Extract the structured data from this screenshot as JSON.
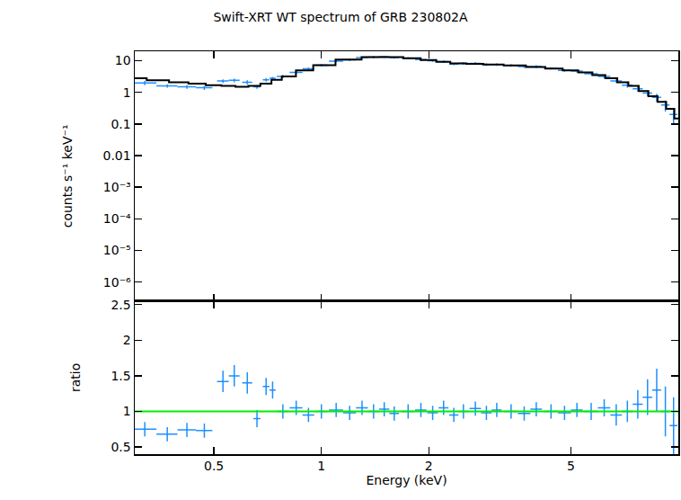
{
  "chart_data": [
    {
      "type": "scatter",
      "title": "Swift-XRT WT spectrum of GRB 230802A",
      "y_label": "counts s⁻¹ keV⁻¹",
      "log": true,
      "tick_labels": "y",
      "xlim": [
        0.3,
        10
      ],
      "ylim": [
        2.5e-07,
        20
      ],
      "xticks": [
        0.5,
        1,
        2,
        5
      ],
      "yticks": [
        {
          "value": 1e-06,
          "label": "10⁻⁶"
        },
        {
          "value": 1e-05,
          "label": "10⁻⁵"
        },
        {
          "value": 0.0001,
          "label": "10⁻⁴"
        },
        {
          "value": 0.001,
          "label": "10⁻³"
        },
        0.01,
        0.1,
        1,
        10
      ],
      "series": [
        {
          "type": "scatter",
          "color": "#1e90ff",
          "marker": "point",
          "x": [
            0.32,
            0.37,
            0.42,
            0.47,
            0.53,
            0.57,
            0.62,
            0.66,
            0.7,
            0.73,
            0.78,
            0.85,
            0.92,
            1.0,
            1.1,
            1.2,
            1.3,
            1.4,
            1.5,
            1.6,
            1.75,
            1.9,
            2.05,
            2.2,
            2.35,
            2.5,
            2.7,
            2.9,
            3.1,
            3.4,
            3.7,
            4.0,
            4.4,
            4.8,
            5.2,
            5.7,
            6.2,
            6.7,
            7.2,
            7.7,
            8.2,
            8.7,
            9.2,
            9.7
          ],
          "x_err": [
            0.025,
            0.025,
            0.025,
            0.025,
            0.02,
            0.02,
            0.02,
            0.015,
            0.015,
            0.015,
            0.03,
            0.035,
            0.035,
            0.04,
            0.05,
            0.05,
            0.05,
            0.05,
            0.05,
            0.05,
            0.07,
            0.07,
            0.07,
            0.07,
            0.07,
            0.08,
            0.1,
            0.1,
            0.1,
            0.15,
            0.15,
            0.15,
            0.2,
            0.2,
            0.2,
            0.25,
            0.25,
            0.25,
            0.25,
            0.25,
            0.25,
            0.25,
            0.25,
            0.25
          ],
          "values": [
            2.0,
            1.6,
            1.5,
            1.4,
            2.3,
            2.4,
            2.1,
            1.5,
            2.5,
            2.8,
            3.2,
            4.3,
            5.6,
            7.3,
            9.7,
            10.8,
            12.6,
            13.0,
            13.4,
            12.6,
            12.0,
            11.0,
            10.0,
            9.4,
            7.9,
            8.2,
            8.2,
            7.6,
            7.6,
            7.1,
            6.6,
            6.6,
            5.8,
            5.0,
            4.7,
            3.9,
            3.2,
            2.3,
            1.7,
            1.3,
            0.95,
            0.7,
            0.4,
            0.2
          ],
          "y_err": [
            0.3,
            0.2,
            0.2,
            0.2,
            0.3,
            0.3,
            0.3,
            0.2,
            0.3,
            0.3,
            0.4,
            0.4,
            0.5,
            0.6,
            0.8,
            0.9,
            1.0,
            1.0,
            1.0,
            1.0,
            0.9,
            0.9,
            0.8,
            0.8,
            0.7,
            0.7,
            0.7,
            0.7,
            0.7,
            0.6,
            0.6,
            0.6,
            0.5,
            0.5,
            0.5,
            0.4,
            0.4,
            0.3,
            0.3,
            0.25,
            0.2,
            0.2,
            0.15,
            0.1
          ]
        },
        {
          "type": "line",
          "color": "#000000",
          "line_style": "step",
          "x": [
            0.3,
            0.35,
            0.4,
            0.45,
            0.5,
            0.55,
            0.6,
            0.65,
            0.7,
            0.75,
            0.8,
            0.9,
            1.0,
            1.2,
            1.4,
            1.6,
            1.8,
            2.0,
            2.2,
            2.4,
            2.7,
            3.0,
            3.5,
            4.0,
            4.5,
            5.0,
            5.5,
            6.0,
            6.5,
            7.0,
            7.5,
            8.0,
            8.5,
            9.0,
            9.5,
            10
          ],
          "values": [
            2.8,
            2.4,
            2.1,
            1.9,
            1.7,
            1.6,
            1.5,
            1.6,
            1.9,
            2.5,
            3.2,
            5.0,
            7.3,
            11,
            13,
            13,
            12,
            10.5,
            9.2,
            8.3,
            8.0,
            7.6,
            7.1,
            6.4,
            5.7,
            5.0,
            4.3,
            3.5,
            2.8,
            2.1,
            1.6,
            1.1,
            0.75,
            0.5,
            0.3,
            0.15
          ]
        }
      ]
    },
    {
      "type": "scatter",
      "x_label": "Energy (keV)",
      "y_label": "ratio",
      "log": "x",
      "xlim": [
        0.3,
        10
      ],
      "ylim": [
        0.4,
        2.55
      ],
      "xticks": [
        0.5,
        1,
        2,
        5
      ],
      "yticks": [
        0.5,
        1,
        1.5,
        2,
        2.5
      ],
      "series": [
        {
          "type": "scatter",
          "color": "#1e90ff",
          "marker": "point",
          "x": [
            0.32,
            0.37,
            0.42,
            0.47,
            0.53,
            0.57,
            0.62,
            0.66,
            0.7,
            0.73,
            0.78,
            0.85,
            0.92,
            1.0,
            1.1,
            1.2,
            1.3,
            1.4,
            1.5,
            1.6,
            1.75,
            1.9,
            2.05,
            2.2,
            2.35,
            2.5,
            2.7,
            2.9,
            3.1,
            3.4,
            3.7,
            4.0,
            4.4,
            4.8,
            5.2,
            5.7,
            6.2,
            6.7,
            7.2,
            7.7,
            8.2,
            8.7,
            9.2,
            9.7
          ],
          "x_err": [
            0.025,
            0.025,
            0.025,
            0.025,
            0.02,
            0.02,
            0.02,
            0.015,
            0.015,
            0.015,
            0.03,
            0.035,
            0.035,
            0.04,
            0.05,
            0.05,
            0.05,
            0.05,
            0.05,
            0.05,
            0.07,
            0.07,
            0.07,
            0.07,
            0.07,
            0.08,
            0.1,
            0.1,
            0.1,
            0.15,
            0.15,
            0.15,
            0.2,
            0.2,
            0.2,
            0.25,
            0.25,
            0.25,
            0.25,
            0.25,
            0.25,
            0.25,
            0.25,
            0.25
          ],
          "values": [
            0.75,
            0.68,
            0.74,
            0.73,
            1.42,
            1.5,
            1.4,
            0.9,
            1.35,
            1.3,
            1.0,
            1.05,
            0.95,
            1.0,
            1.02,
            0.98,
            1.05,
            1.0,
            1.03,
            0.97,
            1.0,
            1.02,
            0.98,
            1.05,
            0.95,
            1.0,
            1.04,
            0.98,
            1.02,
            1.0,
            0.97,
            1.03,
            1.0,
            0.98,
            1.02,
            1.0,
            1.05,
            0.95,
            1.0,
            1.1,
            1.2,
            1.3,
            1.0,
            0.8
          ],
          "y_err": [
            0.1,
            0.1,
            0.1,
            0.1,
            0.15,
            0.15,
            0.15,
            0.12,
            0.12,
            0.12,
            0.1,
            0.1,
            0.1,
            0.1,
            0.1,
            0.1,
            0.1,
            0.1,
            0.1,
            0.1,
            0.1,
            0.1,
            0.1,
            0.1,
            0.1,
            0.1,
            0.1,
            0.1,
            0.1,
            0.1,
            0.1,
            0.1,
            0.1,
            0.1,
            0.1,
            0.12,
            0.12,
            0.15,
            0.15,
            0.2,
            0.25,
            0.3,
            0.35,
            0.4
          ]
        },
        {
          "type": "line",
          "color": "#00ee00",
          "x": [
            0.3,
            10
          ],
          "values": [
            1,
            1
          ]
        }
      ]
    }
  ]
}
